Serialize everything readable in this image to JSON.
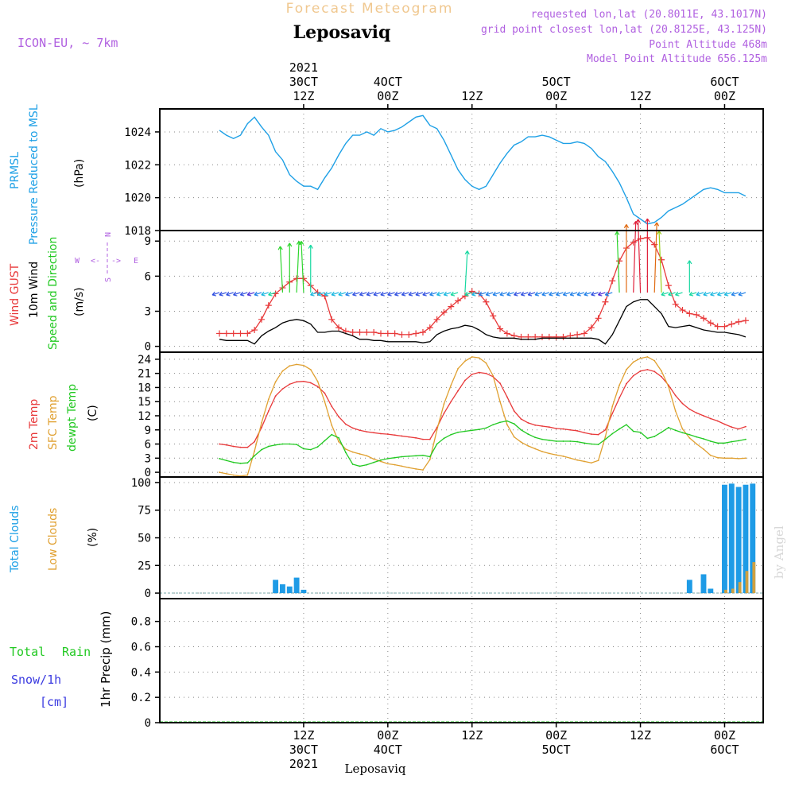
{
  "header": {
    "title": "Forecast Meteogram",
    "location": "Leposaviq",
    "model": "ICON-EU, ~ 7km",
    "requested": "requested lon,lat (20.8011E, 43.1017N)",
    "gridpoint": "grid point closest lon,lat (20.8125E, 43.125N)",
    "point_alt": "Point Altitude 468m",
    "model_alt": "Model Point Altitude 656.125m"
  },
  "footer": {
    "location": "Leposaviq",
    "credit": "by Angel"
  },
  "time_axis": {
    "top": [
      {
        "hour": 12,
        "lines": [
          "2021",
          "30CT",
          "12Z"
        ]
      },
      {
        "hour": 24,
        "lines": [
          "4OCT",
          "00Z"
        ]
      },
      {
        "hour": 36,
        "lines": [
          "12Z"
        ]
      },
      {
        "hour": 48,
        "lines": [
          "5OCT",
          "00Z"
        ]
      },
      {
        "hour": 60,
        "lines": [
          "12Z"
        ]
      },
      {
        "hour": 72,
        "lines": [
          "6OCT",
          "00Z"
        ]
      }
    ],
    "bottom": [
      {
        "hour": 12,
        "lines": [
          "12Z",
          "30CT",
          "2021"
        ]
      },
      {
        "hour": 24,
        "lines": [
          "00Z",
          "4OCT"
        ]
      },
      {
        "hour": 36,
        "lines": [
          "12Z"
        ]
      },
      {
        "hour": 48,
        "lines": [
          "00Z",
          "5OCT"
        ]
      },
      {
        "hour": 60,
        "lines": [
          "12Z"
        ]
      },
      {
        "hour": 72,
        "lines": [
          "00Z",
          "6OCT"
        ]
      }
    ]
  },
  "panels": {
    "pressure": {
      "label_line1": "PRMSL",
      "label_line2": "Pressure Reduced to MSL",
      "unit": "(hPa)"
    },
    "wind": {
      "gust_label": "Wind GUST",
      "wind_label": "10m Wind",
      "dir_label": "Speed and Direction",
      "unit": "(m/s)",
      "compass_n": "N",
      "compass_s": "S",
      "compass_w": "W",
      "compass_e": "E"
    },
    "temp": {
      "label_2m": "2m Temp",
      "label_sfc": "SFC Temp",
      "label_dew": "dewpt Temp",
      "unit": "(C)"
    },
    "clouds": {
      "label_total": "Total Clouds",
      "label_low": "Low Clouds",
      "unit": "(%)"
    },
    "precip": {
      "label_total": "Total",
      "label_rain": "Rain",
      "label_snow": "Snow/1h",
      "label_snow_unit": "[cm]",
      "label_main": "1hr Precip (mm)"
    }
  },
  "colors": {
    "pressure": "#1ea0e6",
    "gust": "#e8393a",
    "wind": "#000000",
    "t2m": "#e8393a",
    "tsfc": "#e0a030",
    "dew": "#22c922",
    "total_clouds": "#1e9be6",
    "low_clouds": "#d0a040",
    "label_cyan": "#1ea0e6",
    "label_red": "#e8393a",
    "label_green": "#22c922",
    "label_orange": "#e0a030",
    "label_violet": "#b060e0",
    "label_blue": "#3a3ae0"
  },
  "chart_data": [
    {
      "type": "line",
      "title": "PRMSL Pressure Reduced to MSL",
      "ylabel": "hPa",
      "ylim": [
        1018,
        1025.4
      ],
      "yticks": [
        1018,
        1020,
        1022,
        1024
      ],
      "x_hours": [
        0,
        1,
        2,
        3,
        4,
        5,
        6,
        7,
        8,
        9,
        10,
        11,
        12,
        13,
        14,
        15,
        16,
        17,
        18,
        19,
        20,
        21,
        22,
        23,
        24,
        25,
        26,
        27,
        28,
        29,
        30,
        31,
        32,
        33,
        34,
        35,
        36,
        37,
        38,
        39,
        40,
        41,
        42,
        43,
        44,
        45,
        46,
        47,
        48,
        49,
        50,
        51,
        52,
        53,
        54,
        55,
        56,
        57,
        58,
        59,
        60,
        61,
        62,
        63,
        64,
        65,
        66,
        67,
        68,
        69,
        70,
        71,
        72,
        73,
        74,
        75
      ],
      "series": [
        {
          "name": "PRMSL",
          "values": [
            1024.1,
            1023.8,
            1023.6,
            1023.8,
            1024.5,
            1024.9,
            1024.3,
            1023.8,
            1022.8,
            1022.3,
            1021.4,
            1021.0,
            1020.7,
            1020.7,
            1020.5,
            1021.2,
            1021.8,
            1022.6,
            1023.3,
            1023.8,
            1023.8,
            1024.0,
            1023.8,
            1024.2,
            1024.0,
            1024.1,
            1024.3,
            1024.6,
            1024.9,
            1025.0,
            1024.4,
            1024.2,
            1023.5,
            1022.6,
            1021.7,
            1021.1,
            1020.7,
            1020.5,
            1020.7,
            1021.4,
            1022.1,
            1022.7,
            1023.2,
            1023.4,
            1023.7,
            1023.7,
            1023.8,
            1023.7,
            1023.5,
            1023.3,
            1023.3,
            1023.4,
            1023.3,
            1023.0,
            1022.5,
            1022.2,
            1021.6,
            1020.9,
            1020.0,
            1019.0,
            1018.7,
            1018.4,
            1018.5,
            1018.8,
            1019.2,
            1019.4,
            1019.6,
            1019.9,
            1020.2,
            1020.5,
            1020.6,
            1020.5,
            1020.3,
            1020.3,
            1020.3,
            1020.1
          ]
        }
      ]
    },
    {
      "type": "line",
      "title": "Wind GUST / 10m Wind Speed and Direction",
      "ylabel": "m/s",
      "ylim": [
        -0.5,
        9.9
      ],
      "yticks": [
        0,
        3,
        6,
        9
      ],
      "x_hours": [
        0,
        1,
        2,
        3,
        4,
        5,
        6,
        7,
        8,
        9,
        10,
        11,
        12,
        13,
        14,
        15,
        16,
        17,
        18,
        19,
        20,
        21,
        22,
        23,
        24,
        25,
        26,
        27,
        28,
        29,
        30,
        31,
        32,
        33,
        34,
        35,
        36,
        37,
        38,
        39,
        40,
        41,
        42,
        43,
        44,
        45,
        46,
        47,
        48,
        49,
        50,
        51,
        52,
        53,
        54,
        55,
        56,
        57,
        58,
        59,
        60,
        61,
        62,
        63,
        64,
        65,
        66,
        67,
        68,
        69,
        70,
        71,
        72,
        73,
        74,
        75
      ],
      "series": [
        {
          "name": "Wind GUST",
          "values": [
            1.1,
            1.1,
            1.1,
            1.1,
            1.1,
            1.4,
            2.3,
            3.5,
            4.5,
            5.0,
            5.5,
            5.8,
            5.8,
            5.2,
            4.6,
            4.3,
            2.3,
            1.6,
            1.3,
            1.2,
            1.2,
            1.2,
            1.2,
            1.1,
            1.1,
            1.1,
            1.0,
            1.0,
            1.1,
            1.2,
            1.6,
            2.3,
            2.9,
            3.4,
            3.9,
            4.3,
            4.7,
            4.5,
            3.8,
            2.6,
            1.5,
            1.1,
            0.9,
            0.8,
            0.8,
            0.8,
            0.8,
            0.8,
            0.8,
            0.8,
            0.9,
            1.0,
            1.1,
            1.6,
            2.4,
            3.8,
            5.6,
            7.3,
            8.4,
            8.9,
            9.2,
            9.3,
            8.7,
            7.4,
            5.2,
            3.6,
            3.1,
            2.8,
            2.7,
            2.4,
            2.0,
            1.7,
            1.7,
            1.9,
            2.1,
            2.2
          ]
        },
        {
          "name": "10m Wind",
          "values": [
            0.6,
            0.5,
            0.5,
            0.5,
            0.5,
            0.2,
            0.9,
            1.3,
            1.6,
            2.0,
            2.2,
            2.3,
            2.2,
            1.9,
            1.2,
            1.2,
            1.3,
            1.3,
            1.1,
            0.9,
            0.6,
            0.6,
            0.5,
            0.5,
            0.4,
            0.4,
            0.4,
            0.4,
            0.4,
            0.3,
            0.4,
            1.0,
            1.3,
            1.5,
            1.6,
            1.8,
            1.7,
            1.4,
            1.0,
            0.8,
            0.7,
            0.7,
            0.7,
            0.6,
            0.6,
            0.6,
            0.7,
            0.7,
            0.7,
            0.7,
            0.7,
            0.7,
            0.7,
            0.7,
            0.6,
            0.2,
            1.0,
            2.2,
            3.4,
            3.8,
            4.0,
            4.0,
            3.4,
            2.8,
            1.7,
            1.6,
            1.7,
            1.8,
            1.6,
            1.4,
            1.3,
            1.2,
            1.2,
            1.1,
            1.0,
            0.8
          ]
        }
      ],
      "wind_direction": "mostly from E/NE (arrows pointing W/SW), veering to southerly during afternoon maxima"
    },
    {
      "type": "line",
      "title": "2m Temp / SFC Temp / dewpt Temp",
      "ylabel": "C",
      "ylim": [
        -1,
        25.5
      ],
      "yticks": [
        0,
        3,
        6,
        9,
        12,
        15,
        18,
        21,
        24
      ],
      "x_hours": [
        0,
        1,
        2,
        3,
        4,
        5,
        6,
        7,
        8,
        9,
        10,
        11,
        12,
        13,
        14,
        15,
        16,
        17,
        18,
        19,
        20,
        21,
        22,
        23,
        24,
        25,
        26,
        27,
        28,
        29,
        30,
        31,
        32,
        33,
        34,
        35,
        36,
        37,
        38,
        39,
        40,
        41,
        42,
        43,
        44,
        45,
        46,
        47,
        48,
        49,
        50,
        51,
        52,
        53,
        54,
        55,
        56,
        57,
        58,
        59,
        60,
        61,
        62,
        63,
        64,
        65,
        66,
        67,
        68,
        69,
        70,
        71,
        72,
        73,
        74,
        75
      ],
      "series": [
        {
          "name": "2m Temp",
          "values": [
            6.0,
            5.8,
            5.5,
            5.3,
            5.3,
            6.5,
            9.5,
            13.0,
            16.2,
            17.7,
            18.7,
            19.2,
            19.3,
            19.0,
            18.2,
            16.8,
            14.0,
            11.8,
            10.2,
            9.4,
            8.9,
            8.6,
            8.4,
            8.2,
            8.1,
            7.9,
            7.7,
            7.5,
            7.3,
            7.0,
            7.0,
            9.5,
            12.5,
            15.0,
            17.3,
            19.5,
            20.8,
            21.2,
            21.0,
            20.3,
            18.9,
            16.0,
            13.0,
            11.3,
            10.5,
            10.0,
            9.8,
            9.6,
            9.3,
            9.2,
            9.0,
            8.8,
            8.4,
            8.1,
            8.0,
            9.0,
            12.5,
            15.8,
            18.8,
            20.5,
            21.5,
            21.8,
            21.4,
            20.3,
            18.5,
            16.3,
            14.6,
            13.4,
            12.6,
            12.0,
            11.4,
            10.9,
            10.2,
            9.6,
            9.2,
            9.7
          ]
        },
        {
          "name": "SFC Temp",
          "values": [
            0.0,
            -0.3,
            -0.6,
            -0.8,
            -0.6,
            4.5,
            10.5,
            15.5,
            19.2,
            21.5,
            22.6,
            22.9,
            22.7,
            21.8,
            19.3,
            15.0,
            10.0,
            6.5,
            4.9,
            4.3,
            3.9,
            3.5,
            2.8,
            2.3,
            1.8,
            1.6,
            1.3,
            1.0,
            0.7,
            0.5,
            2.7,
            9.0,
            14.5,
            18.5,
            22.0,
            23.6,
            24.5,
            24.3,
            23.2,
            20.5,
            15.0,
            10.1,
            7.5,
            6.4,
            5.6,
            5.0,
            4.4,
            4.0,
            3.7,
            3.4,
            3.0,
            2.6,
            2.3,
            2.0,
            2.5,
            7.5,
            14.0,
            18.5,
            21.8,
            23.4,
            24.2,
            24.5,
            23.7,
            21.5,
            18.2,
            13.0,
            9.2,
            7.3,
            6.0,
            4.9,
            3.6,
            3.1,
            3.0,
            3.0,
            2.9,
            3.0
          ]
        },
        {
          "name": "dewpt Temp",
          "values": [
            2.9,
            2.5,
            2.1,
            1.9,
            2.0,
            3.5,
            4.8,
            5.5,
            5.8,
            6.0,
            6.0,
            5.9,
            5.0,
            4.8,
            5.4,
            6.7,
            8.0,
            7.3,
            4.2,
            1.7,
            1.3,
            1.6,
            2.1,
            2.6,
            2.9,
            3.1,
            3.3,
            3.4,
            3.5,
            3.6,
            3.3,
            6.0,
            7.2,
            8.0,
            8.5,
            8.7,
            8.9,
            9.1,
            9.4,
            10.1,
            10.6,
            10.9,
            10.3,
            9.0,
            8.1,
            7.4,
            7.0,
            6.8,
            6.6,
            6.6,
            6.6,
            6.5,
            6.2,
            6.0,
            5.9,
            7.0,
            8.2,
            9.2,
            10.1,
            8.7,
            8.5,
            7.2,
            7.6,
            8.5,
            9.5,
            8.9,
            8.4,
            8.0,
            7.5,
            7.1,
            6.6,
            6.2,
            6.2,
            6.5,
            6.7,
            7.0
          ]
        }
      ]
    },
    {
      "type": "bar",
      "title": "Total Clouds / Low Clouds",
      "ylabel": "%",
      "ylim": [
        -5,
        105
      ],
      "yticks": [
        0,
        25,
        50,
        75,
        100
      ],
      "series": [
        {
          "name": "Total Clouds",
          "bars": [
            {
              "hour": 8,
              "value": 12
            },
            {
              "hour": 9,
              "value": 8
            },
            {
              "hour": 10,
              "value": 6
            },
            {
              "hour": 11,
              "value": 14
            },
            {
              "hour": 12,
              "value": 3
            },
            {
              "hour": 67,
              "value": 12
            },
            {
              "hour": 69,
              "value": 17
            },
            {
              "hour": 70,
              "value": 4
            },
            {
              "hour": 72,
              "value": 98
            },
            {
              "hour": 73,
              "value": 99
            },
            {
              "hour": 74,
              "value": 96
            },
            {
              "hour": 75,
              "value": 98
            },
            {
              "hour": 76,
              "value": 99
            }
          ]
        },
        {
          "name": "Low Clouds",
          "bars": [
            {
              "hour": 72,
              "value": 3
            },
            {
              "hour": 73,
              "value": 4
            },
            {
              "hour": 74,
              "value": 10
            },
            {
              "hour": 75,
              "value": 20
            },
            {
              "hour": 76,
              "value": 28
            }
          ]
        }
      ]
    },
    {
      "type": "bar",
      "title": "1hr Precip (mm)",
      "ylabel": "mm",
      "ylim": [
        0,
        0.98
      ],
      "yticks": [
        0,
        0.2,
        0.4,
        0.6,
        0.8
      ],
      "series": [
        {
          "name": "Total Rain",
          "values": []
        },
        {
          "name": "Snow/1h",
          "values": []
        }
      ]
    }
  ]
}
